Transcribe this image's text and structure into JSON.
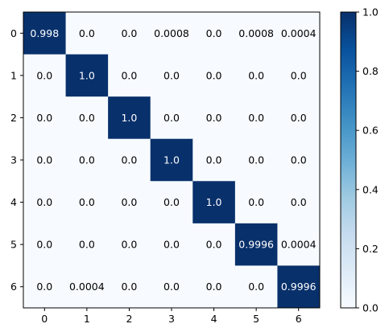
{
  "chart_data": {
    "type": "heatmap",
    "title": "",
    "xlabel": "",
    "ylabel": "",
    "x_categories": [
      "0",
      "1",
      "2",
      "3",
      "4",
      "5",
      "6"
    ],
    "y_categories": [
      "0",
      "1",
      "2",
      "3",
      "4",
      "5",
      "6"
    ],
    "values": [
      [
        0.998,
        0.0,
        0.0,
        0.0008,
        0.0,
        0.0008,
        0.0004
      ],
      [
        0.0,
        1.0,
        0.0,
        0.0,
        0.0,
        0.0,
        0.0
      ],
      [
        0.0,
        0.0,
        1.0,
        0.0,
        0.0,
        0.0,
        0.0
      ],
      [
        0.0,
        0.0,
        0.0,
        1.0,
        0.0,
        0.0,
        0.0
      ],
      [
        0.0,
        0.0,
        0.0,
        0.0,
        1.0,
        0.0,
        0.0
      ],
      [
        0.0,
        0.0,
        0.0,
        0.0,
        0.0,
        0.9996,
        0.0004
      ],
      [
        0.0,
        0.0004,
        0.0,
        0.0,
        0.0,
        0.0,
        0.9996
      ]
    ],
    "cell_labels": [
      [
        "0.998",
        "0.0",
        "0.0",
        "0.0008",
        "0.0",
        "0.0008",
        "0.0004"
      ],
      [
        "0.0",
        "1.0",
        "0.0",
        "0.0",
        "0.0",
        "0.0",
        "0.0"
      ],
      [
        "0.0",
        "0.0",
        "1.0",
        "0.0",
        "0.0",
        "0.0",
        "0.0"
      ],
      [
        "0.0",
        "0.0",
        "0.0",
        "1.0",
        "0.0",
        "0.0",
        "0.0"
      ],
      [
        "0.0",
        "0.0",
        "0.0",
        "0.0",
        "1.0",
        "0.0",
        "0.0"
      ],
      [
        "0.0",
        "0.0",
        "0.0",
        "0.0",
        "0.0",
        "0.9996",
        "0.0004"
      ],
      [
        "0.0",
        "0.0004",
        "0.0",
        "0.0",
        "0.0",
        "0.0",
        "0.9996"
      ]
    ],
    "colorbar": {
      "min": 0.0,
      "max": 1.0,
      "ticks": [
        0.0,
        0.2,
        0.4,
        0.6,
        0.8,
        1.0
      ],
      "tick_labels": [
        "0.0",
        "0.2",
        "0.4",
        "0.6",
        "0.8",
        "1.0"
      ],
      "colormap": "Blues",
      "color_low": "#f7fbff",
      "color_high": "#08306b"
    },
    "grid": false,
    "legend": "colorbar-right"
  }
}
